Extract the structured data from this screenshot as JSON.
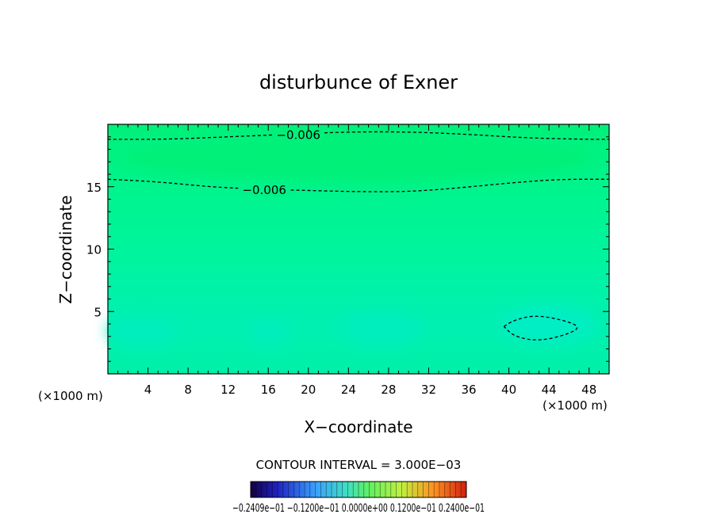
{
  "chart_data": {
    "type": "contour",
    "title": "disturbunce of Exner",
    "xlabel": "X−coordinate",
    "ylabel": "Z−coordinate",
    "x_unit_left": "(×1000 m)",
    "x_unit_right": "(×1000 m)",
    "xlim": [
      0,
      50
    ],
    "ylim": [
      0,
      20
    ],
    "x_ticks": [
      4,
      8,
      12,
      16,
      20,
      24,
      28,
      32,
      36,
      40,
      44,
      48
    ],
    "y_ticks": [
      5,
      10,
      15
    ],
    "contour_interval_text": "CONTOUR INTERVAL = 3.000E−03",
    "colorbar_labels_text": "−0.2409e−01  −0.1200e−01  0.0000e+00  0.1200e−01  0.2400e−01",
    "colorbar_range": [
      -0.024,
      0.024
    ],
    "contours": [
      {
        "level": -0.006,
        "label": "−0.006",
        "style": "dashed",
        "points": [
          [
            0,
            18.8
          ],
          [
            6,
            18.8
          ],
          [
            12,
            19.0
          ],
          [
            18,
            19.2
          ],
          [
            24,
            19.4
          ],
          [
            30,
            19.4
          ],
          [
            36,
            19.2
          ],
          [
            42,
            18.9
          ],
          [
            48,
            18.8
          ],
          [
            50,
            18.8
          ]
        ]
      },
      {
        "level": -0.006,
        "label": "−0.006",
        "style": "dashed",
        "points": [
          [
            0,
            15.6
          ],
          [
            5,
            15.4
          ],
          [
            10,
            15.0
          ],
          [
            15,
            14.8
          ],
          [
            20,
            14.7
          ],
          [
            25,
            14.6
          ],
          [
            30,
            14.6
          ],
          [
            35,
            14.9
          ],
          [
            40,
            15.3
          ],
          [
            45,
            15.6
          ],
          [
            50,
            15.6
          ]
        ]
      },
      {
        "level": -0.003,
        "label": "",
        "style": "dashed-closed",
        "points": [
          [
            39.5,
            3.8
          ],
          [
            40.5,
            4.3
          ],
          [
            42.5,
            4.7
          ],
          [
            45,
            4.4
          ],
          [
            47.2,
            3.8
          ],
          [
            46,
            3.2
          ],
          [
            43,
            2.6
          ],
          [
            40.5,
            3.0
          ],
          [
            39.5,
            3.8
          ]
        ]
      }
    ],
    "field_colors": {
      "top_band": "#00f07a",
      "upper_mid": "#00f48c",
      "middle": "#00f4a0",
      "lower": "#00f0b2",
      "bottom_cells": "#00eebd",
      "near_ground": "#00f0a8"
    }
  }
}
